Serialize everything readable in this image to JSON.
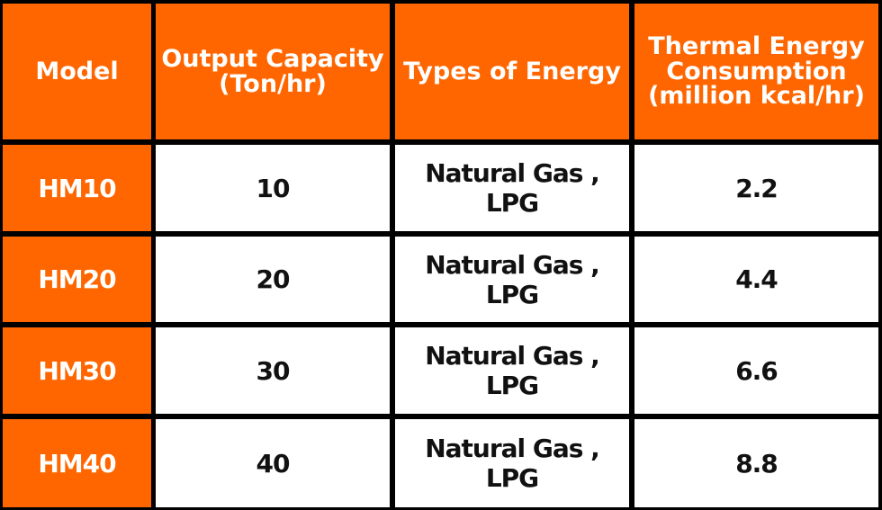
{
  "headers": [
    "Model",
    "Output Capacity\n(Ton/hr)",
    "Types of Energy",
    "Thermal Energy\nConsumption\n(million kcal/hr)"
  ],
  "rows": [
    {
      "model": "HM10",
      "capacity": "10",
      "energy": "Natural Gas , LPG",
      "thermal": "2.2"
    },
    {
      "model": "HM20",
      "capacity": "20",
      "energy": "Natural Gas , LPG",
      "thermal": "4.4"
    },
    {
      "model": "HM30",
      "capacity": "30",
      "energy": "Natural Gas , LPG",
      "thermal": "6.6"
    },
    {
      "model": "HM40",
      "capacity": "40",
      "energy": "Natural Gas , LPG",
      "thermal": "8.8"
    }
  ],
  "colors": {
    "accent": "#ff6600",
    "border": "#000000",
    "cell_bg": "#ffffff"
  }
}
